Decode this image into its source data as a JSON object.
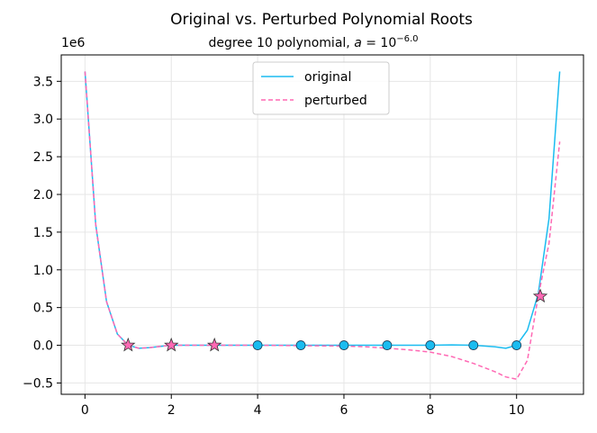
{
  "chart_data": {
    "type": "line",
    "title": "Original vs. Perturbed Polynomial Roots",
    "subtitle_prefix": "degree 10 polynomial, ",
    "subtitle_var": "a",
    "subtitle_eq": " = 10",
    "subtitle_exp": "−6.0",
    "offset_label": "1e6",
    "xlim": [
      -0.55,
      11.55
    ],
    "ylim": [
      -0.65,
      3.85
    ],
    "xticks": [
      0,
      2,
      4,
      6,
      8,
      10
    ],
    "xtick_labels": [
      "0",
      "2",
      "4",
      "6",
      "8",
      "10"
    ],
    "yticks": [
      -0.5,
      0.0,
      0.5,
      1.0,
      1.5,
      2.0,
      2.5,
      3.0,
      3.5
    ],
    "ytick_labels": [
      "−0.5",
      "0.0",
      "0.5",
      "1.0",
      "1.5",
      "2.0",
      "2.5",
      "3.0",
      "3.5"
    ],
    "grid": true,
    "legend_placement": "upper center",
    "series": [
      {
        "name": "original",
        "color": "#1bbcf0",
        "style": "solid",
        "x": [
          0,
          0.25,
          0.5,
          0.75,
          1.0,
          1.25,
          1.5,
          2,
          3,
          4,
          5,
          6,
          7,
          8,
          8.5,
          9,
          9.5,
          9.75,
          10.0,
          10.25,
          10.5,
          10.75,
          11.0
        ],
        "y": [
          3.63,
          1.6,
          0.58,
          0.15,
          0.0,
          -0.04,
          -0.03,
          0.0,
          0.0,
          0.0,
          0.0,
          0.0,
          0.0,
          0.0,
          0.005,
          0.0,
          -0.02,
          -0.04,
          0.0,
          0.2,
          0.68,
          1.68,
          3.63
        ]
      },
      {
        "name": "perturbed",
        "color": "#ff69b4",
        "style": "dashed",
        "x": [
          0,
          0.25,
          0.5,
          0.75,
          1.0,
          1.25,
          1.5,
          2,
          3,
          4,
          5,
          6,
          6.5,
          7,
          7.5,
          8,
          8.5,
          9,
          9.5,
          9.75,
          10.0,
          10.25,
          10.5,
          10.75,
          11.0
        ],
        "y": [
          3.63,
          1.6,
          0.58,
          0.15,
          0.0,
          -0.04,
          -0.03,
          0.0,
          0.0,
          0.0,
          -0.005,
          -0.01,
          -0.02,
          -0.04,
          -0.06,
          -0.09,
          -0.15,
          -0.24,
          -0.35,
          -0.42,
          -0.45,
          -0.2,
          0.65,
          1.35,
          2.7
        ]
      }
    ],
    "original_roots": {
      "color": "#1bbcf0",
      "x": [
        4,
        5,
        6,
        7,
        8,
        9,
        10
      ],
      "y": [
        0,
        0,
        0,
        0,
        0,
        0,
        0
      ]
    },
    "perturbed_roots": {
      "color": "#ff69b4",
      "x": [
        1,
        2,
        3,
        10.55
      ],
      "y": [
        0,
        0,
        0,
        0.65
      ]
    }
  }
}
